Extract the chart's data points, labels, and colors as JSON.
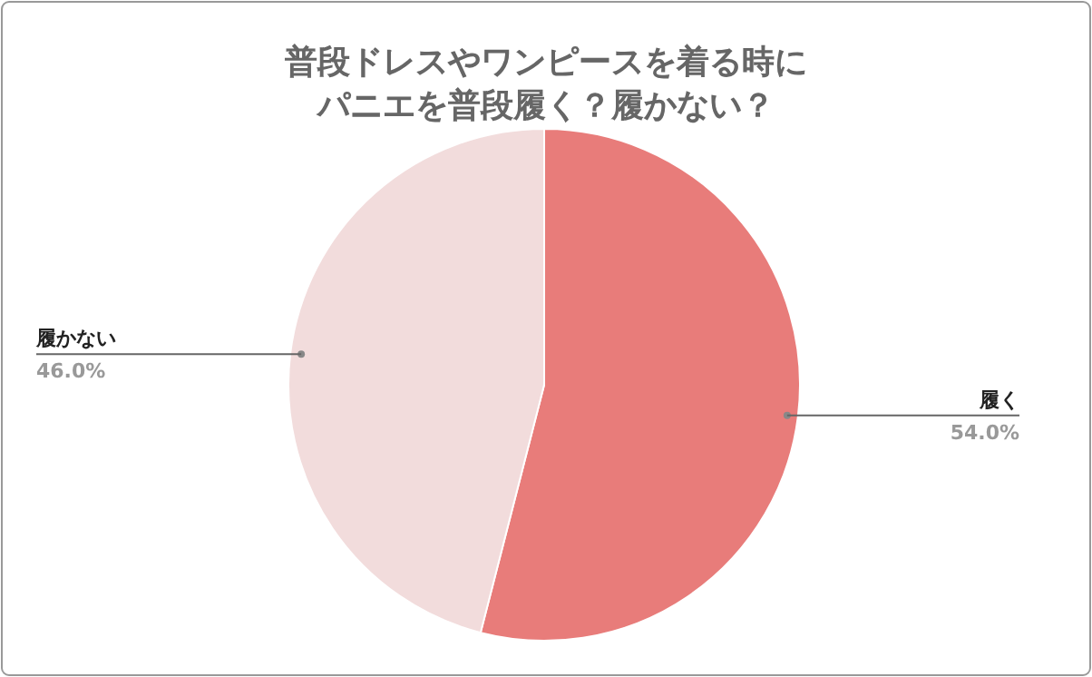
{
  "chart_data": {
    "type": "pie",
    "title": "普段ドレスやワンピースを着る時にパニエを普段履く？履かない？",
    "categories": [
      "履く",
      "履かない"
    ],
    "values": [
      54.0,
      46.0
    ],
    "colors": [
      "#e87c7a",
      "#f2dcdc"
    ],
    "value_labels": [
      "54.0%",
      "46.0%"
    ]
  }
}
